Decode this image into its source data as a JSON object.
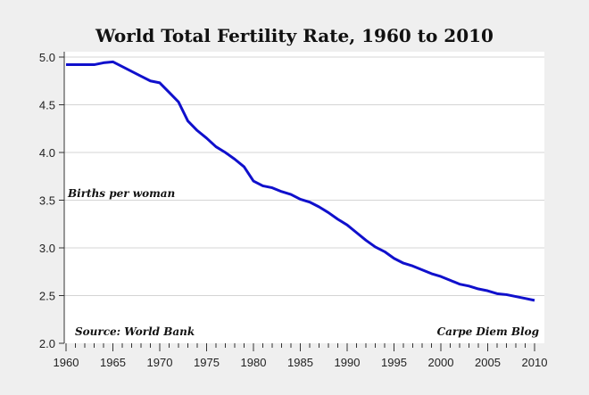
{
  "chart_data": {
    "type": "line",
    "title": "World Total Fertility Rate, 1960 to 2010",
    "ylabel": "Births per woman",
    "xlabel": "",
    "annotations": {
      "source": "Source: World Bank",
      "credit": "Carpe Diem Blog"
    },
    "xlim": [
      1960,
      2010
    ],
    "ylim": [
      2.0,
      5.0
    ],
    "xticks": [
      1960,
      1965,
      1970,
      1975,
      1980,
      1985,
      1990,
      1995,
      2000,
      2005,
      2010
    ],
    "yticks": [
      "2.0",
      "2.5",
      "3.0",
      "3.5",
      "4.0",
      "4.5",
      "5.0"
    ],
    "grid": true,
    "color": "#1010cc",
    "x": [
      1960,
      1961,
      1962,
      1963,
      1964,
      1965,
      1966,
      1967,
      1968,
      1969,
      1970,
      1971,
      1972,
      1973,
      1974,
      1975,
      1976,
      1977,
      1978,
      1979,
      1980,
      1981,
      1982,
      1983,
      1984,
      1985,
      1986,
      1987,
      1988,
      1989,
      1990,
      1991,
      1992,
      1993,
      1994,
      1995,
      1996,
      1997,
      1998,
      1999,
      2000,
      2001,
      2002,
      2003,
      2004,
      2005,
      2006,
      2007,
      2008,
      2009,
      2010
    ],
    "values": [
      4.92,
      4.92,
      4.92,
      4.92,
      4.94,
      4.95,
      4.9,
      4.85,
      4.8,
      4.75,
      4.73,
      4.63,
      4.53,
      4.33,
      4.23,
      4.15,
      4.06,
      4.0,
      3.93,
      3.85,
      3.7,
      3.65,
      3.63,
      3.59,
      3.56,
      3.51,
      3.48,
      3.43,
      3.37,
      3.3,
      3.24,
      3.16,
      3.08,
      3.01,
      2.96,
      2.89,
      2.84,
      2.81,
      2.77,
      2.73,
      2.7,
      2.66,
      2.62,
      2.6,
      2.57,
      2.55,
      2.52,
      2.51,
      2.49,
      2.47,
      2.45
    ]
  }
}
